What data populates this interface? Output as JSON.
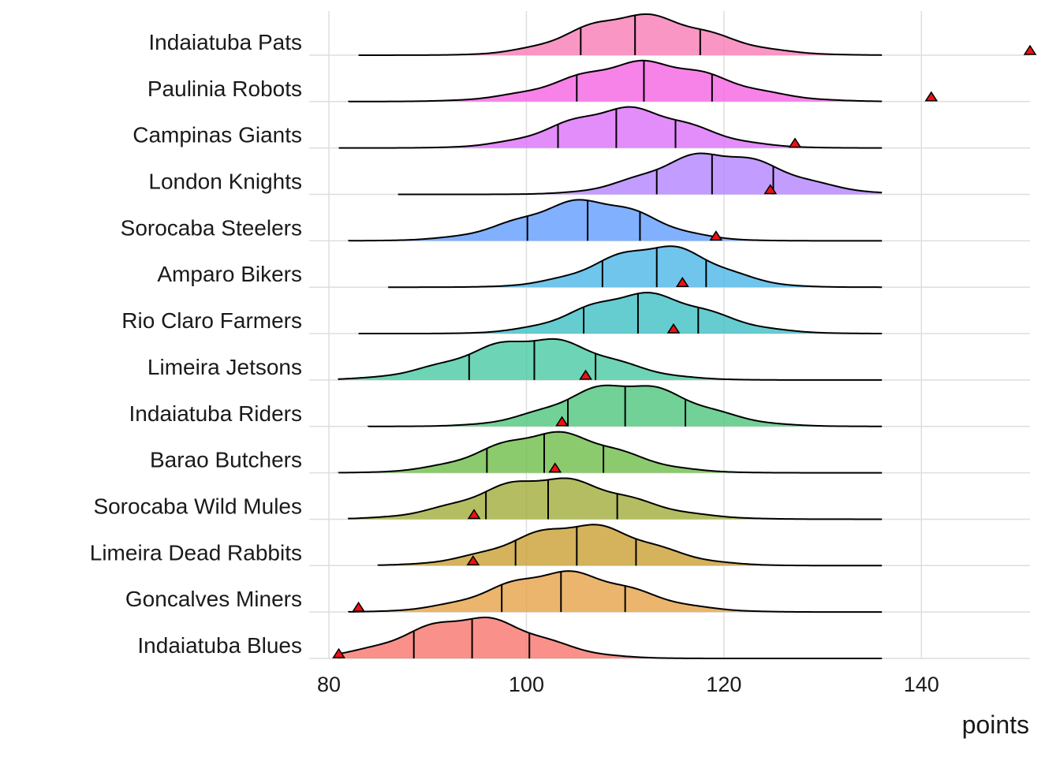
{
  "chart_data": {
    "type": "ridgeline",
    "title": "",
    "xlabel": "points",
    "ylabel": "",
    "xlim": [
      78,
      151
    ],
    "x_ticks": [
      80,
      100,
      120,
      140
    ],
    "x_tick_labels": [
      "80",
      "100",
      "120",
      "140"
    ],
    "grid": true,
    "legend": "none",
    "series": [
      {
        "name": "Indaiatuba Pats",
        "color": "#F77CB5",
        "range": [
          83,
          136
        ],
        "peak": 111,
        "quartiles": [
          105.5,
          111,
          117.6
        ],
        "marker": 151
      },
      {
        "name": "Paulinia Robots",
        "color": "#F564E3",
        "range": [
          82,
          136
        ],
        "peak": 112,
        "quartiles": [
          105.1,
          111.9,
          118.8
        ],
        "marker": 141
      },
      {
        "name": "Campinas Giants",
        "color": "#DC71FA",
        "range": [
          81,
          136
        ],
        "peak": 110,
        "quartiles": [
          103.2,
          109.1,
          115.1
        ],
        "marker": 127.2
      },
      {
        "name": "London Knights",
        "color": "#B385FF",
        "range": [
          87,
          136
        ],
        "peak": 119,
        "quartiles": [
          113.2,
          118.8,
          125
        ],
        "marker": 124.7
      },
      {
        "name": "Sorocaba Steelers",
        "color": "#619CFF",
        "range": [
          82,
          136
        ],
        "peak": 106.5,
        "quartiles": [
          100.1,
          106.2,
          111.5
        ],
        "marker": 119.2
      },
      {
        "name": "Amparo Bikers",
        "color": "#4CB6E8",
        "range": [
          86,
          136
        ],
        "peak": 113.5,
        "quartiles": [
          107.7,
          113.2,
          118.2
        ],
        "marker": 115.8
      },
      {
        "name": "Rio Claro Farmers",
        "color": "#3EBFC4",
        "range": [
          83,
          136
        ],
        "peak": 111.5,
        "quartiles": [
          105.8,
          111.3,
          117.4
        ],
        "marker": 114.9
      },
      {
        "name": "Limeira Jetsons",
        "color": "#48C9A3",
        "range": [
          81,
          136
        ],
        "peak": 101,
        "quartiles": [
          94.2,
          100.8,
          107
        ],
        "marker": 106
      },
      {
        "name": "Indaiatuba Riders",
        "color": "#4FC57C",
        "range": [
          84,
          136
        ],
        "peak": 110,
        "quartiles": [
          104.2,
          110,
          116.1
        ],
        "marker": 103.6
      },
      {
        "name": "Barao Butchers",
        "color": "#6EBE4A",
        "range": [
          81,
          136
        ],
        "peak": 102.5,
        "quartiles": [
          96,
          101.8,
          107.8
        ],
        "marker": 102.9
      },
      {
        "name": "Sorocaba Wild Mules",
        "color": "#A3AC3B",
        "range": [
          82,
          136
        ],
        "peak": 102,
        "quartiles": [
          95.9,
          102.2,
          109.2
        ],
        "marker": 94.7
      },
      {
        "name": "Limeira Dead Rabbits",
        "color": "#C9A033",
        "range": [
          85,
          136
        ],
        "peak": 105.5,
        "quartiles": [
          98.9,
          105.1,
          111.1
        ],
        "marker": 94.6
      },
      {
        "name": "Goncalves Miners",
        "color": "#E6A24A",
        "range": [
          82,
          136
        ],
        "peak": 103.5,
        "quartiles": [
          97.5,
          103.5,
          110
        ],
        "marker": 83
      },
      {
        "name": "Indaiatuba Blues",
        "color": "#F8766D",
        "range": [
          81,
          136
        ],
        "peak": 94.5,
        "quartiles": [
          88.6,
          94.5,
          100.3
        ],
        "marker": 81
      }
    ]
  }
}
